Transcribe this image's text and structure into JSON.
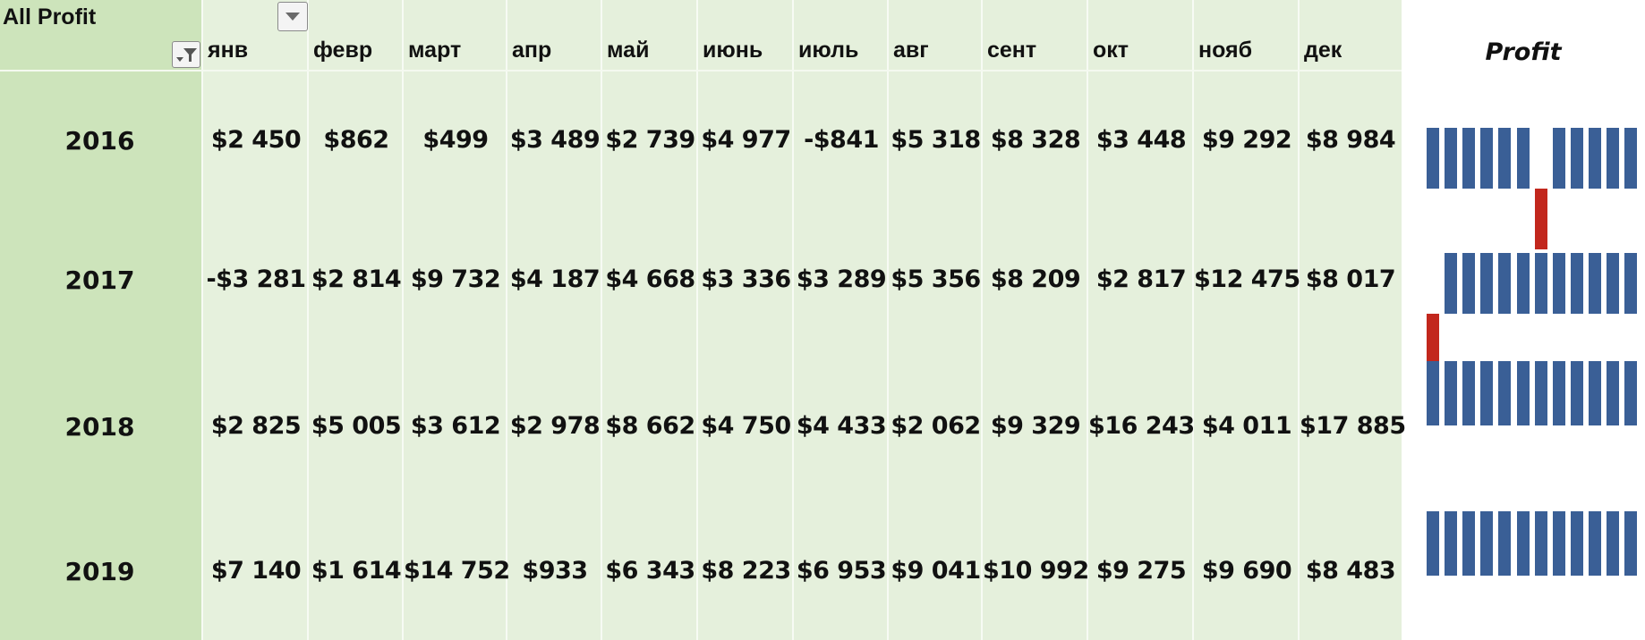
{
  "pivot": {
    "title": "All Profit",
    "months": [
      "янв",
      "февр",
      "март",
      "апр",
      "май",
      "июнь",
      "июль",
      "авг",
      "сент",
      "окт",
      "нояб",
      "дек"
    ],
    "sparkline_header": "Profit",
    "rows": [
      {
        "year": "2016",
        "values": [
          "$2 450",
          "$862",
          "$499",
          "$3 489",
          "$2 739",
          "$4 977",
          "-$841",
          "$5 318",
          "$8 328",
          "$3 448",
          "$9 292",
          "$8 984"
        ],
        "numbers": [
          2450,
          862,
          499,
          3489,
          2739,
          4977,
          -841,
          5318,
          8328,
          3448,
          9292,
          8984
        ]
      },
      {
        "year": "2017",
        "values": [
          "-$3 281",
          "$2 814",
          "$9 732",
          "$4 187",
          "$4 668",
          "$3 336",
          "$3 289",
          "$5 356",
          "$8 209",
          "$2 817",
          "$12 475",
          "$8 017"
        ],
        "numbers": [
          -3281,
          2814,
          9732,
          4187,
          4668,
          3336,
          3289,
          5356,
          8209,
          2817,
          12475,
          8017
        ]
      },
      {
        "year": "2018",
        "values": [
          "$2 825",
          "$5 005",
          "$3 612",
          "$2 978",
          "$8 662",
          "$4 750",
          "$4 433",
          "$2 062",
          "$9 329",
          "$16 243",
          "$4 011",
          "$17 885"
        ],
        "numbers": [
          2825,
          5005,
          3612,
          2978,
          8662,
          4750,
          4433,
          2062,
          9329,
          16243,
          4011,
          17885
        ]
      },
      {
        "year": "2019",
        "values": [
          "$7 140",
          "$1 614",
          "$14 752",
          "$933",
          "$6 343",
          "$8 223",
          "$6 953",
          "$9 041",
          "$10 992",
          "$9 275",
          "$9 690",
          "$8 483"
        ],
        "numbers": [
          7140,
          1614,
          14752,
          933,
          6343,
          8223,
          6953,
          9041,
          10992,
          9275,
          9690,
          8483
        ]
      }
    ]
  },
  "colors": {
    "positive_bar": "#3a5f96",
    "negative_bar": "#c2271d"
  },
  "icons": {
    "dropdown": "dropdown-arrow-icon",
    "filter": "filter-icon"
  }
}
